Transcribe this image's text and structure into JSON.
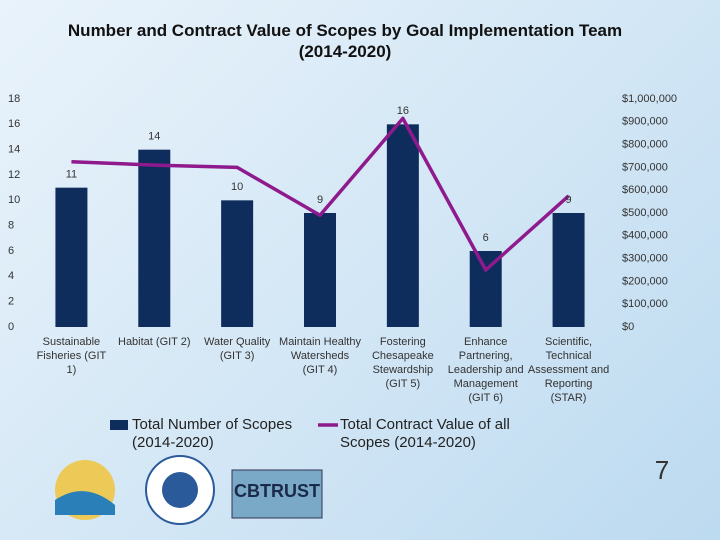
{
  "chart_data": {
    "type": "bar",
    "title": "Number and Contract Value of Scopes by Goal Implementation Team",
    "subtitle": "(2014-2020)",
    "categories": [
      "Sustainable Fisheries (GIT 1)",
      "Habitat (GIT 2)",
      "Water Quality (GIT 3)",
      "Maintain Healthy Watersheds (GIT 4)",
      "Fostering Chesapeake Stewardship (GIT 5)",
      "Enhance Partnering, Leadership and Management (GIT 6)",
      "Scientific, Technical Assessment and Reporting (STAR)"
    ],
    "series": [
      {
        "name": "Total Number of Scopes (2014-2020)",
        "type": "bar",
        "color": "#0f2d5c",
        "values": [
          11,
          14,
          10,
          9,
          16,
          6,
          9
        ],
        "data_labels": true
      },
      {
        "name": "Total Contract Value of all Scopes (2014-2020)",
        "type": "line",
        "axis": "y2",
        "color": "#8e1a8e",
        "values": [
          725000,
          710000,
          700000,
          490000,
          915000,
          250000,
          575000
        ]
      }
    ],
    "ylim": [
      0,
      18
    ],
    "yticks": [
      0,
      2,
      4,
      6,
      8,
      10,
      12,
      14,
      16,
      18
    ],
    "y2lim": [
      0,
      1000000
    ],
    "y2ticks": [
      {
        "value": 0,
        "label": "$0"
      },
      {
        "value": 100000,
        "label": "$100,000"
      },
      {
        "value": 200000,
        "label": "$200,000"
      },
      {
        "value": 300000,
        "label": "$300,000"
      },
      {
        "value": 400000,
        "label": "$400,000"
      },
      {
        "value": 500000,
        "label": "$500,000"
      },
      {
        "value": 600000,
        "label": "$600,000"
      },
      {
        "value": 700000,
        "label": "$700,000"
      },
      {
        "value": 800000,
        "label": "$800,000"
      },
      {
        "value": 900000,
        "label": "$900,000"
      },
      {
        "value": 1000000,
        "label": "$1,000,000"
      }
    ],
    "grid": false,
    "legend": "bottom"
  },
  "footer": {
    "page_number": "7",
    "logo_text": "CBTRUST"
  }
}
